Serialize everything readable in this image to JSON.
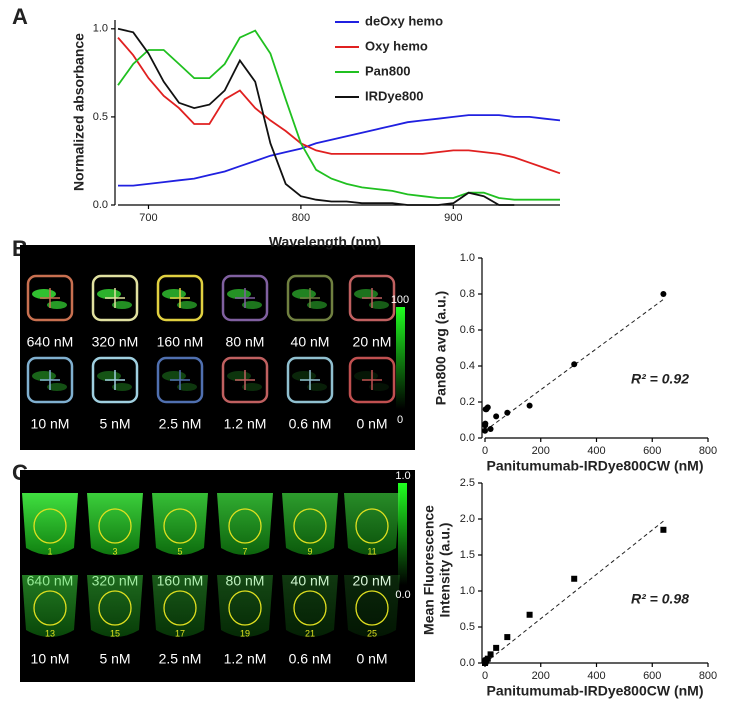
{
  "panel_labels": [
    "A",
    "B",
    "C"
  ],
  "chart_data": [
    {
      "type": "line",
      "xlabel": "Wavelength (nm)",
      "ylabel": "Normalized absorbance",
      "x": [
        680,
        690,
        700,
        710,
        720,
        730,
        740,
        750,
        760,
        770,
        780,
        790,
        800,
        810,
        820,
        830,
        840,
        850,
        860,
        870,
        880,
        890,
        900,
        910,
        920,
        930,
        940,
        950,
        960,
        970
      ],
      "xlim": [
        680,
        970
      ],
      "xticks": [
        700,
        800,
        900
      ],
      "ylim": [
        0,
        1.05
      ],
      "yticks": [
        {
          "value": 0,
          "label": "0.0"
        },
        0.5,
        {
          "value": 1,
          "label": "1.0"
        }
      ],
      "legend": "upper right",
      "series": [
        {
          "name": "deOxy hemo",
          "color": "#2020e0",
          "values": [
            0.11,
            0.11,
            0.12,
            0.13,
            0.14,
            0.15,
            0.17,
            0.19,
            0.22,
            0.25,
            0.28,
            0.3,
            0.32,
            0.35,
            0.37,
            0.39,
            0.41,
            0.43,
            0.45,
            0.47,
            0.48,
            0.49,
            0.5,
            0.51,
            0.51,
            0.51,
            0.5,
            0.5,
            0.49,
            0.48
          ]
        },
        {
          "name": "Oxy hemo",
          "color": "#e02020",
          "values": [
            0.95,
            0.85,
            0.72,
            0.62,
            0.55,
            0.46,
            0.46,
            0.6,
            0.65,
            0.55,
            0.48,
            0.42,
            0.35,
            0.31,
            0.29,
            0.29,
            0.29,
            0.29,
            0.29,
            0.29,
            0.29,
            0.3,
            0.31,
            0.31,
            0.3,
            0.29,
            0.27,
            0.24,
            0.21,
            0.18
          ]
        },
        {
          "name": "Pan800",
          "color": "#20c020",
          "values": [
            0.68,
            0.8,
            0.88,
            0.88,
            0.8,
            0.72,
            0.72,
            0.8,
            0.95,
            0.99,
            0.86,
            0.6,
            0.35,
            0.2,
            0.15,
            0.12,
            0.1,
            0.09,
            0.08,
            0.06,
            0.05,
            0.04,
            0.04,
            0.07,
            0.07,
            0.04,
            0.03,
            0.03,
            0.03,
            0.03
          ]
        },
        {
          "name": "IRDye800",
          "color": "#111111",
          "values": [
            1.0,
            0.98,
            0.86,
            0.7,
            0.58,
            0.55,
            0.57,
            0.65,
            0.82,
            0.7,
            0.35,
            0.12,
            0.05,
            0.03,
            0.02,
            0.02,
            0.01,
            0.01,
            0.01,
            0,
            0,
            0,
            0.01,
            0.07,
            0.05,
            0,
            0,
            null,
            null,
            null
          ]
        }
      ]
    },
    {
      "type": "scatter",
      "xlabel": "Panitumumab-IRDye800CW  (nM)",
      "ylabel": [
        "Pan800 avg (a.u.)"
      ],
      "x": [
        640,
        320,
        160,
        80,
        40,
        20,
        10,
        5,
        2.5,
        1.2,
        0.6,
        0
      ],
      "values": [
        0.8,
        0.41,
        0.18,
        0.14,
        0.12,
        0.05,
        0.17,
        0.16,
        0.16,
        0.08,
        0.07,
        0.04
      ],
      "marker": "circle",
      "color": "#000000",
      "xlim": [
        0,
        800
      ],
      "xticks": [
        0,
        200,
        400,
        600,
        800
      ],
      "ylim": [
        0,
        1
      ],
      "yticks": [
        {
          "value": 0,
          "label": "0.0"
        },
        0.2,
        0.4,
        0.6,
        0.8,
        {
          "value": 1,
          "label": "1.0"
        }
      ],
      "trendline": {
        "x": [
          0,
          640
        ],
        "y": [
          0.04,
          0.77
        ]
      },
      "annotation": "R² = 0.92"
    },
    {
      "type": "scatter",
      "xlabel": "Panitumumab-IRDye800CW  (nM)",
      "ylabel": [
        "Mean Fluorescence",
        "Intensity (a.u.)"
      ],
      "x": [
        640,
        320,
        160,
        80,
        40,
        20,
        10,
        5,
        2.5,
        1.2,
        0.6,
        0
      ],
      "values": [
        1.85,
        1.17,
        0.67,
        0.36,
        0.21,
        0.12,
        0.06,
        0.04,
        0.03,
        0.02,
        0.01,
        0
      ],
      "marker": "square",
      "color": "#000000",
      "xlim": [
        0,
        800
      ],
      "xticks": [
        0,
        200,
        400,
        600,
        800
      ],
      "ylim": [
        0,
        2.5
      ],
      "yticks": [
        {
          "value": 0,
          "label": "0.0"
        },
        0.5,
        {
          "value": 1,
          "label": "1.0"
        },
        1.5,
        {
          "value": 2,
          "label": "2.0"
        },
        2.5
      ],
      "trendline": {
        "x": [
          0,
          640
        ],
        "y": [
          0,
          1.97
        ]
      },
      "annotation": "R² = 0.98"
    }
  ],
  "image_panels": [
    {
      "concentrations": [
        "640 nM",
        "320 nM",
        "160 nM",
        "80 nM",
        "40 nM",
        "20 nM",
        "10 nM",
        "5 nM",
        "2.5 nM",
        "1.2 nM",
        "0.6 nM",
        "0 nM"
      ],
      "colorbar_ticks": [
        "100",
        "0"
      ]
    },
    {
      "concentrations": [
        "640 nM",
        "320 nM",
        "160 nM",
        "80 nM",
        "40 nM",
        "20 nM",
        "10 nM",
        "5 nM",
        "2.5 nM",
        "1.2 nM",
        "0.6 nM",
        "0 nM"
      ],
      "well_numbers": [
        "1",
        "3",
        "5",
        "7",
        "9",
        "11",
        "13",
        "15",
        "17",
        "19",
        "21",
        "25"
      ],
      "colorbar_ticks": [
        "1.0",
        "0.0"
      ]
    }
  ]
}
